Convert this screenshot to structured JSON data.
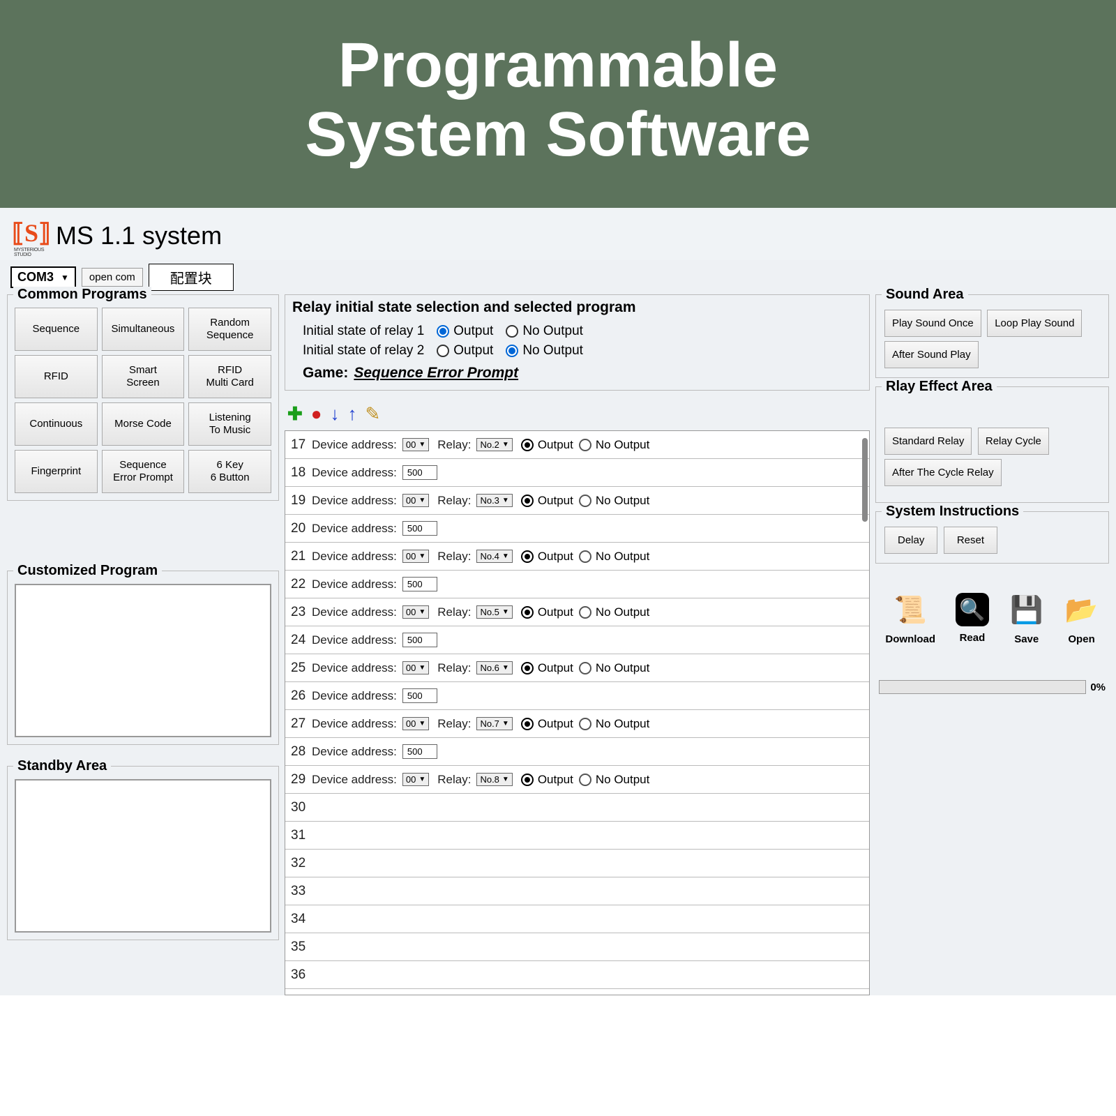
{
  "banner": {
    "line1": "Programmable",
    "line2": "System Software"
  },
  "header": {
    "logo_sub": "MYSTERIOUS STUDIO",
    "title": "MS 1.1 system"
  },
  "toolbar": {
    "com": "COM3",
    "open": "open com",
    "config": "配置块"
  },
  "common": {
    "title": "Common Programs",
    "items": [
      "Sequence",
      "Simultaneous",
      "Random\nSequence",
      "RFID",
      "Smart\nScreen",
      "RFID\nMulti Card",
      "Continuous",
      "Morse Code",
      "Listening\nTo Music",
      "Fingerprint",
      "Sequence\nError Prompt",
      "6 Key\n6 Button"
    ]
  },
  "custom": {
    "title": "Customized Program"
  },
  "standby": {
    "title": "Standby Area"
  },
  "relay": {
    "title": "Relay initial state selection and selected program",
    "r1_label": "Initial state of relay 1",
    "r2_label": "Initial state of relay 2",
    "opt_out": "Output",
    "opt_noout": "No Output",
    "game_label": "Game:",
    "game_value": "Sequence Error Prompt"
  },
  "grid": {
    "dev_label": "Device address:",
    "relay_label": "Relay:",
    "opt_out": "Output",
    "opt_noout": "No Output",
    "rows": [
      {
        "n": 17,
        "type": "relay",
        "addr": "00",
        "relay": "No.2"
      },
      {
        "n": 18,
        "type": "val",
        "val": "500"
      },
      {
        "n": 19,
        "type": "relay",
        "addr": "00",
        "relay": "No.3"
      },
      {
        "n": 20,
        "type": "val",
        "val": "500"
      },
      {
        "n": 21,
        "type": "relay",
        "addr": "00",
        "relay": "No.4"
      },
      {
        "n": 22,
        "type": "val",
        "val": "500"
      },
      {
        "n": 23,
        "type": "relay",
        "addr": "00",
        "relay": "No.5"
      },
      {
        "n": 24,
        "type": "val",
        "val": "500"
      },
      {
        "n": 25,
        "type": "relay",
        "addr": "00",
        "relay": "No.6"
      },
      {
        "n": 26,
        "type": "val",
        "val": "500"
      },
      {
        "n": 27,
        "type": "relay",
        "addr": "00",
        "relay": "No.7"
      },
      {
        "n": 28,
        "type": "val",
        "val": "500"
      },
      {
        "n": 29,
        "type": "relay",
        "addr": "00",
        "relay": "No.8"
      },
      {
        "n": 30,
        "type": "empty"
      },
      {
        "n": 31,
        "type": "empty"
      },
      {
        "n": 32,
        "type": "empty"
      },
      {
        "n": 33,
        "type": "empty"
      },
      {
        "n": 34,
        "type": "empty"
      },
      {
        "n": 35,
        "type": "empty"
      },
      {
        "n": 36,
        "type": "empty"
      }
    ]
  },
  "sound": {
    "title": "Sound Area",
    "b1": "Play Sound Once",
    "b2": "Loop Play Sound",
    "b3": "After Sound Play"
  },
  "effect": {
    "title": "Rlay Effect Area",
    "b1": "Standard Relay",
    "b2": "Relay Cycle",
    "b3": "After The Cycle Relay"
  },
  "sys": {
    "title": "System Instructions",
    "b1": "Delay",
    "b2": "Reset"
  },
  "actions": {
    "download": "Download",
    "read": "Read",
    "save": "Save",
    "open": "Open"
  },
  "progress": {
    "pct": "0%"
  }
}
